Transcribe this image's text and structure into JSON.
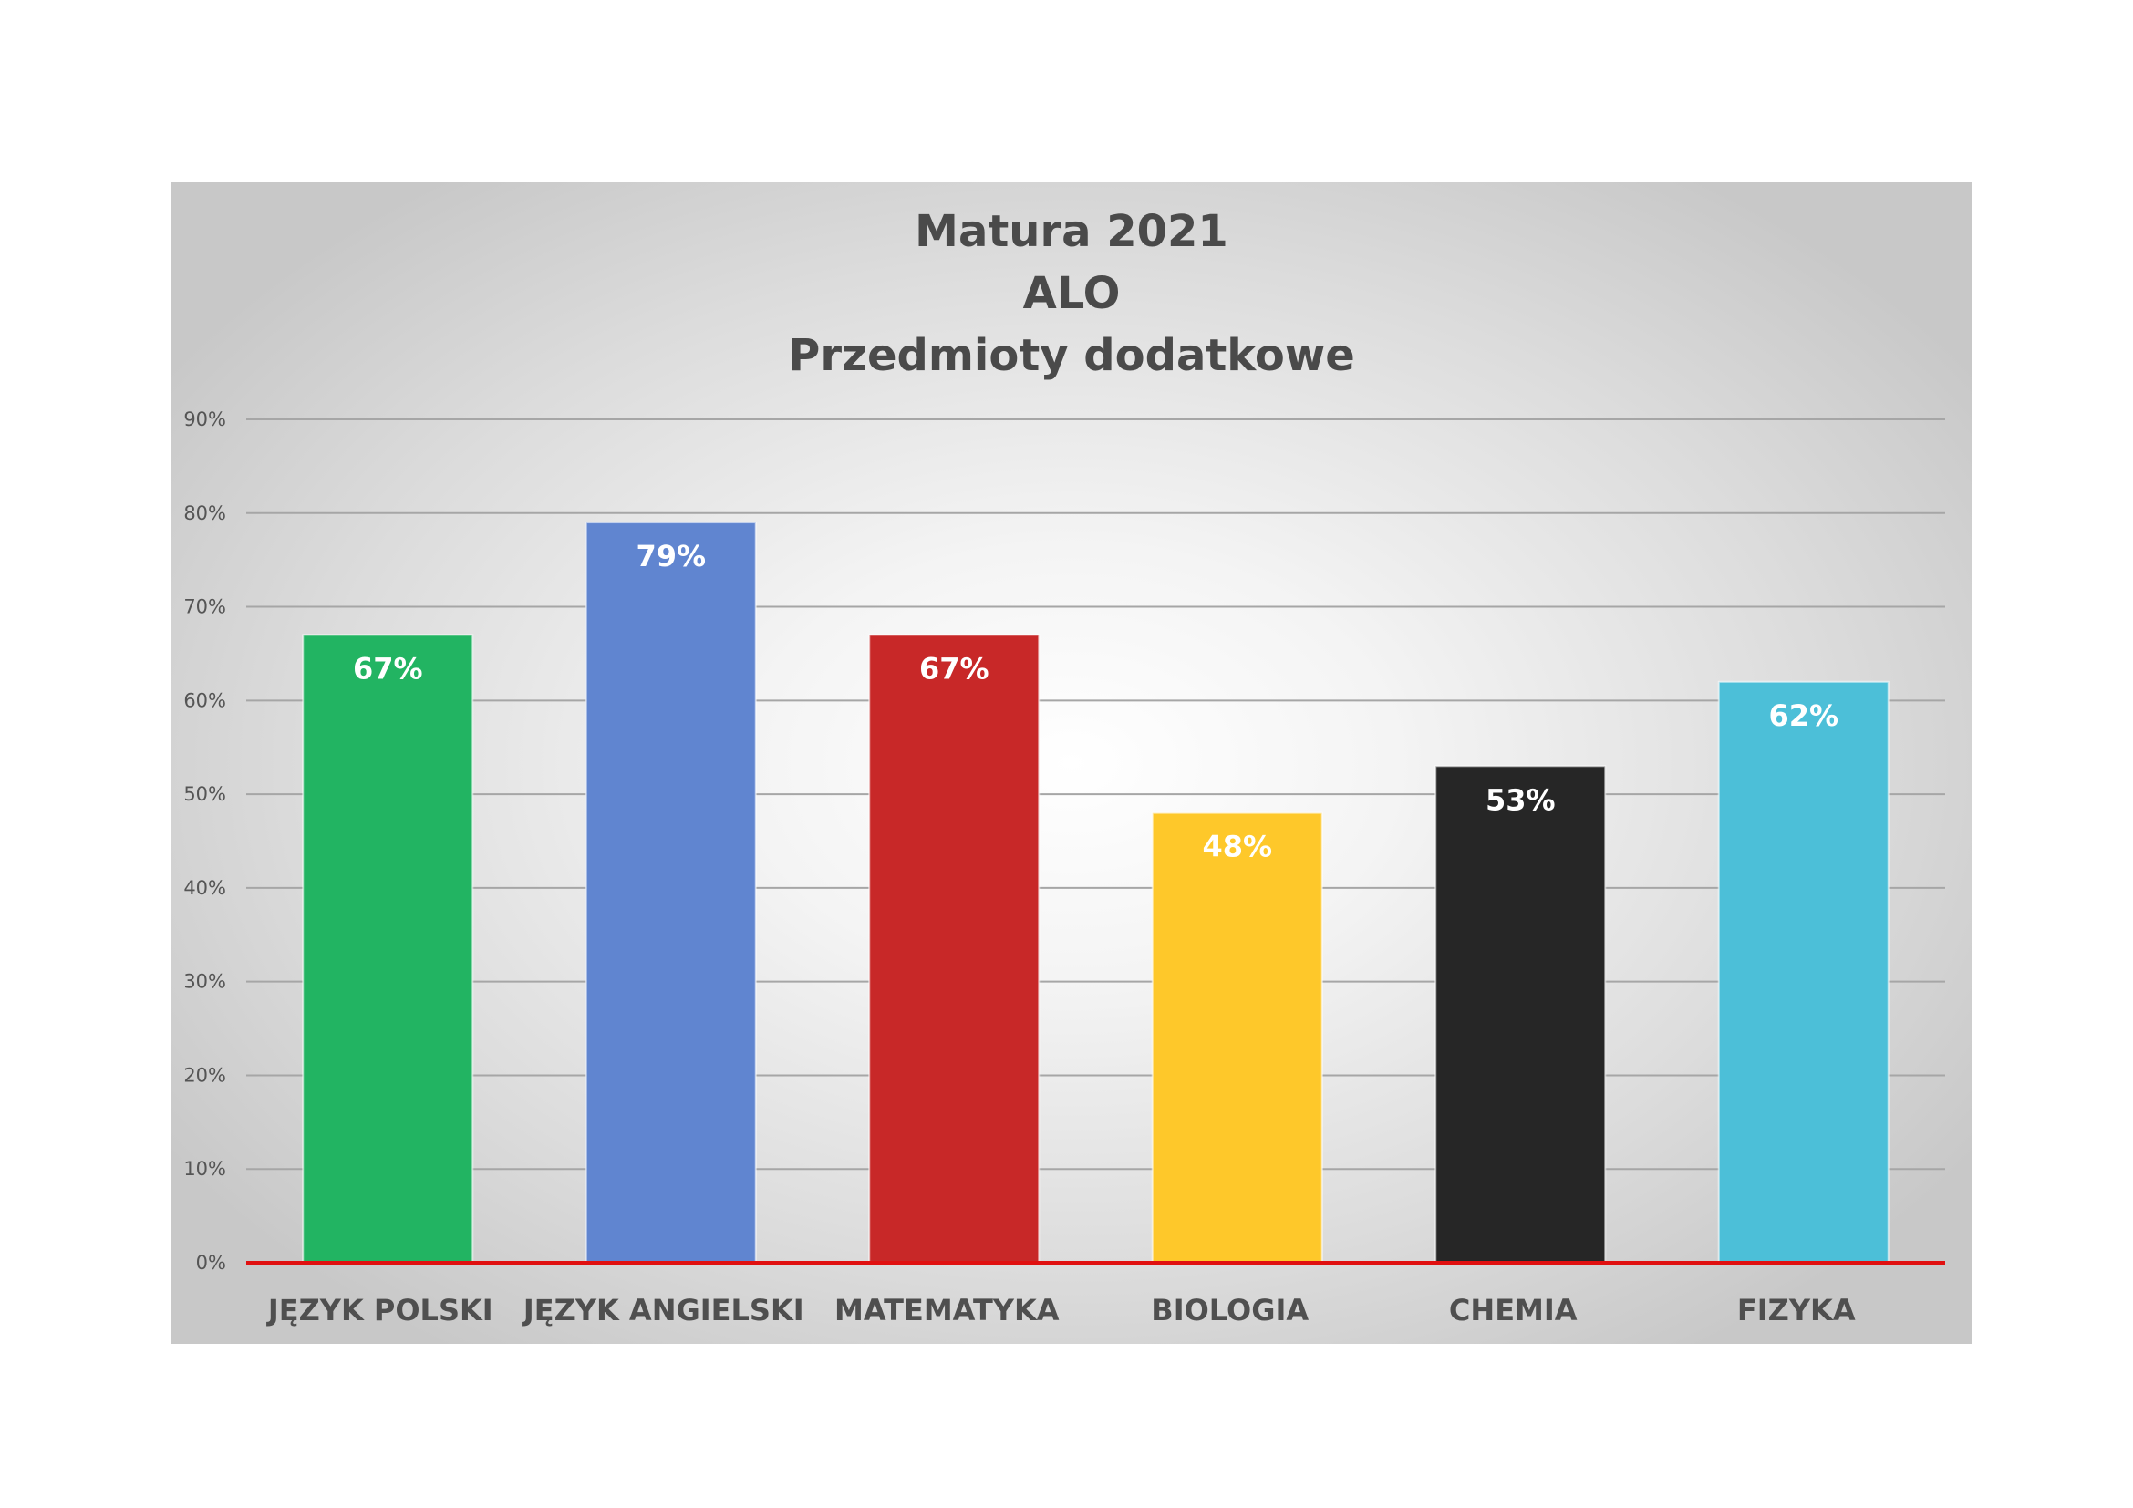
{
  "chart_data": {
    "type": "bar",
    "title_lines": [
      "Matura 2021",
      "ALO",
      "Przedmioty dodatkowe"
    ],
    "categories": [
      "JĘZYK POLSKI",
      "JĘZYK ANGIELSKI",
      "MATEMATYKA",
      "BIOLOGIA",
      "CHEMIA",
      "FIZYKA"
    ],
    "values": [
      67,
      79,
      67,
      48,
      53,
      62
    ],
    "data_labels": [
      "67%",
      "79%",
      "67%",
      "48%",
      "53%",
      "62%"
    ],
    "bar_colors": [
      "#22b462",
      "#6085d0",
      "#c82828",
      "#fec82a",
      "#262626",
      "#4cbfd8"
    ],
    "label_colors": [
      "#ffffff",
      "#ffffff",
      "#ffffff",
      "#ffffff",
      "#ffffff",
      "#ffffff"
    ],
    "ylim": [
      0,
      90
    ],
    "yticks": [
      0,
      10,
      20,
      30,
      40,
      50,
      60,
      70,
      80,
      90
    ],
    "ytick_labels": [
      "0%",
      "10%",
      "20%",
      "30%",
      "40%",
      "50%",
      "60%",
      "70%",
      "80%",
      "90%"
    ],
    "xlabel": "",
    "ylabel": "",
    "grid": true,
    "legend": "none",
    "baseline_color": "#e01010",
    "gridline_color": "#a6a6a6"
  }
}
